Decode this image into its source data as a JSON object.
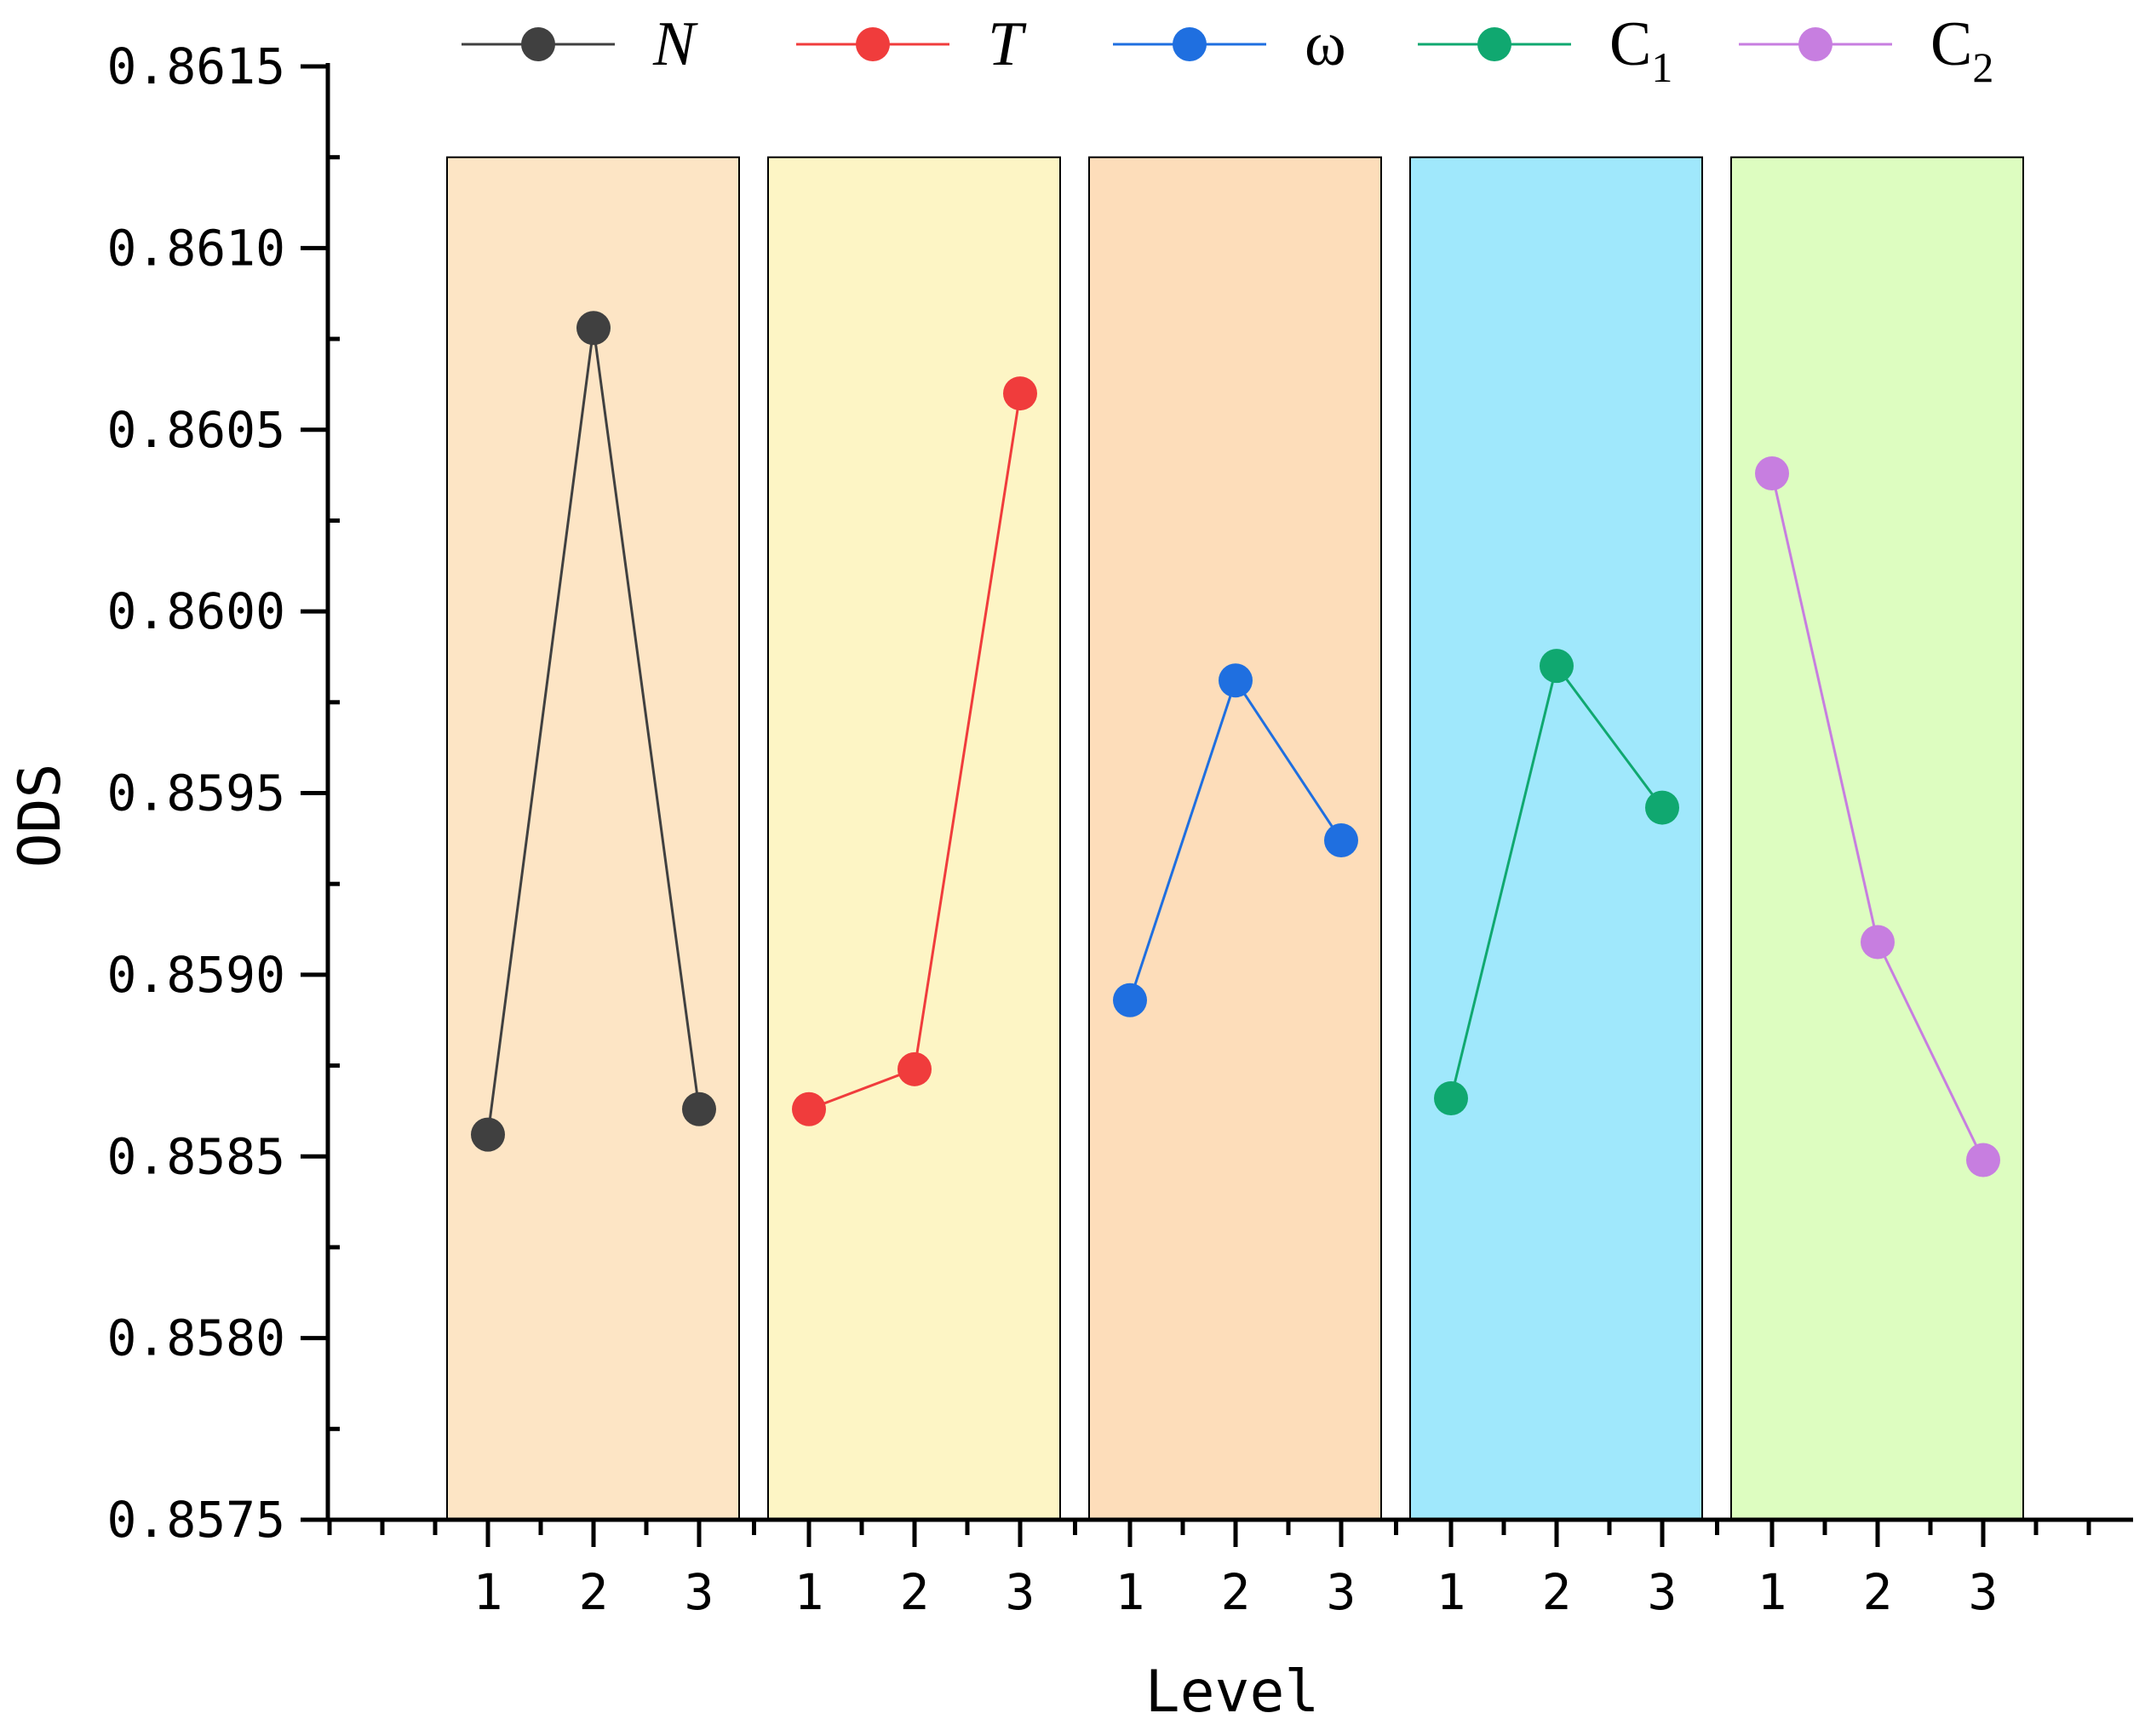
{
  "chart_data": {
    "type": "line",
    "title": "",
    "xlabel": "Level",
    "ylabel": "ODS",
    "ylim": [
      0.8575,
      0.8615
    ],
    "y_major_step": 0.0005,
    "y_tick_labels": [
      "0.8575",
      "0.8580",
      "0.8585",
      "0.8590",
      "0.8595",
      "0.8600",
      "0.8605",
      "0.8610",
      "0.8615"
    ],
    "x_tick_labels": [
      "1",
      "2",
      "3"
    ],
    "grid": false,
    "legend_position": "top",
    "panel_top_value": 0.86125,
    "series": [
      {
        "name": "N",
        "sub": "",
        "italic": true,
        "color": "#404040",
        "panel_color": "#FDE5C5",
        "levels": [
          1,
          2,
          3
        ],
        "values": [
          0.85856,
          0.86078,
          0.85863
        ]
      },
      {
        "name": "T",
        "sub": "",
        "italic": true,
        "color": "#F03C3C",
        "panel_color": "#FDF5C5",
        "levels": [
          1,
          2,
          3
        ],
        "values": [
          0.85863,
          0.85874,
          0.8606
        ]
      },
      {
        "name": "ω",
        "sub": "",
        "italic": false,
        "color": "#1F6FE0",
        "panel_color": "#FDDDBA",
        "levels": [
          1,
          2,
          3
        ],
        "values": [
          0.85893,
          0.85981,
          0.85937
        ]
      },
      {
        "name": "C",
        "sub": "1",
        "italic": false,
        "color": "#10A870",
        "panel_color": "#A0E8FC",
        "levels": [
          1,
          2,
          3
        ],
        "values": [
          0.85866,
          0.85985,
          0.85946
        ]
      },
      {
        "name": "C",
        "sub": "2",
        "italic": false,
        "color": "#C77EE0",
        "panel_color": "#DDFDC0",
        "levels": [
          1,
          2,
          3
        ],
        "values": [
          0.86038,
          0.85909,
          0.85849
        ]
      }
    ]
  }
}
